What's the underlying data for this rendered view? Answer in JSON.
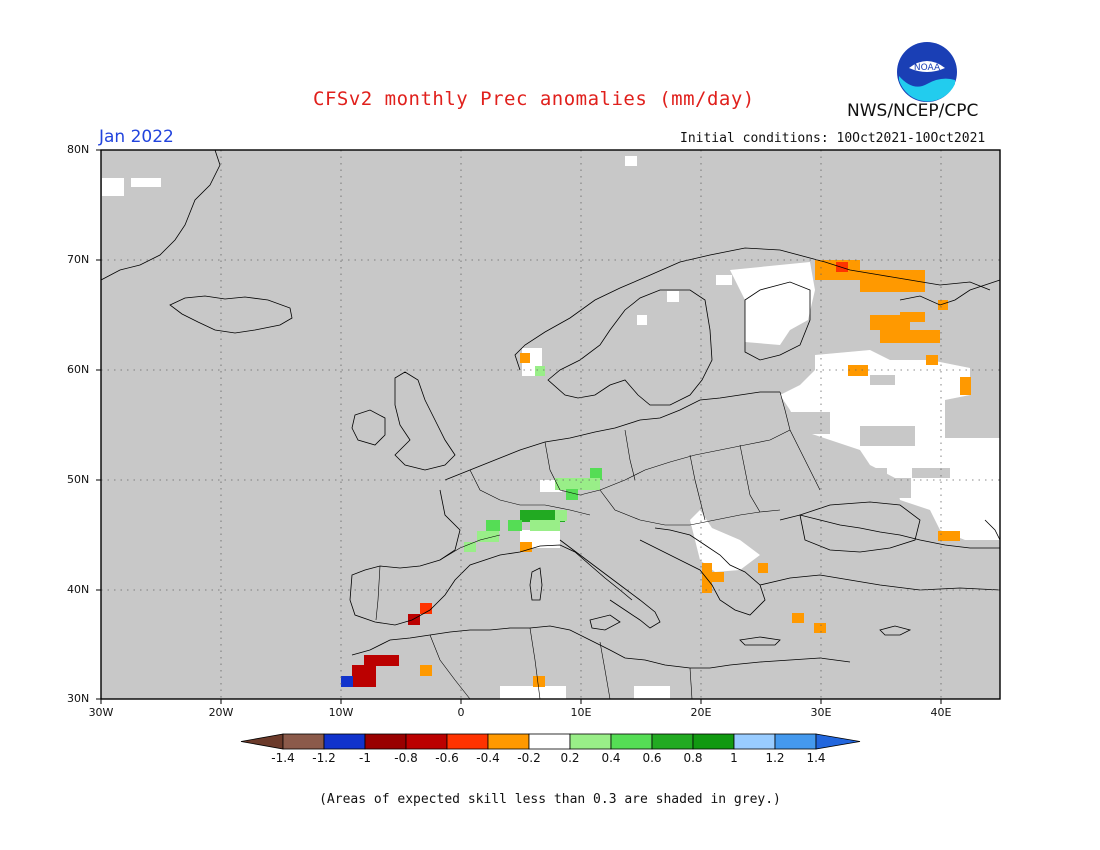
{
  "header": {
    "title": "CFSv2 monthly Prec anomalies (mm/day)",
    "period": "Jan 2022",
    "initial_conditions": "Initial conditions: 10Oct2021-10Oct2021",
    "agency": "NWS/NCEP/CPC",
    "logo_text": "NOAA"
  },
  "map": {
    "lon_range": [
      -30,
      45
    ],
    "lat_range": [
      30,
      80
    ],
    "y_ticks": [
      "80N",
      "70N",
      "60N",
      "50N",
      "40N",
      "30N"
    ],
    "x_ticks": [
      "30W",
      "20W",
      "10W",
      "0",
      "10E",
      "20E",
      "30E",
      "40E"
    ],
    "background_color": "#c8c8c8",
    "region": "Europe"
  },
  "colorbar": {
    "labels": [
      "-1.4",
      "-1.2",
      "-1",
      "-0.8",
      "-0.6",
      "-0.4",
      "-0.2",
      "0.2",
      "0.4",
      "0.6",
      "0.8",
      "1",
      "1.2",
      "1.4"
    ],
    "colors": [
      "#8b5a4a",
      "#996655",
      "#1133cc",
      "#990000",
      "#bb0000",
      "#ff3300",
      "#ff9900",
      "#ffffff",
      "#99ee88",
      "#55dd55",
      "#22aa22",
      "#119911",
      "#99ccff",
      "#4499ee",
      "#2266dd"
    ]
  },
  "footnote": "(Areas of expected skill less than 0.3 are shaded in grey.)"
}
